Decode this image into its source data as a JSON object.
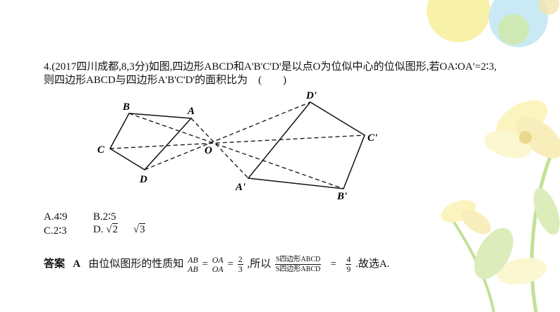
{
  "question": {
    "line1": "4.(2017四川成都,8,3分)如图,四边形ABCD和A'B'C'D'是以点O为位似中心的位似图形,若OA∶OA'=2∶3,",
    "line2": "则四边形ABCD与四边形A'B'C'D'的面积比为　(　　)"
  },
  "figure": {
    "labels": {
      "A": "A",
      "B": "B",
      "C": "C",
      "D": "D",
      "O": "O",
      "A1": "A'",
      "B1": "B'",
      "C1": "C'",
      "D1": "D'"
    }
  },
  "options": {
    "a": "A.4∶9",
    "b": "B.2∶5",
    "c": "C.2∶3",
    "d_prefix": "D.",
    "d_num1": "2",
    "d_num2": "3"
  },
  "answer": {
    "label": "答案",
    "choice": "A",
    "text1": "由位似图形的性质知",
    "f1_num": "AB",
    "f1_den": "AB",
    "eq": "=",
    "f2_num": "OA",
    "f2_den": "OA",
    "f3_num": "2",
    "f3_den": "3",
    "text2": ",所以",
    "s_num": "S四边形ABCD",
    "s_den": "S四边形ABCD",
    "f4_num": "4",
    "f4_den": "9",
    "text3": ".故选A."
  },
  "colors": {
    "bubble_yellow": "#f7ef9a",
    "bubble_blue": "#bfe6f2",
    "bubble_green": "#cfe9a8",
    "flower": "#fbf3b5",
    "leaf": "#b9dc86"
  }
}
